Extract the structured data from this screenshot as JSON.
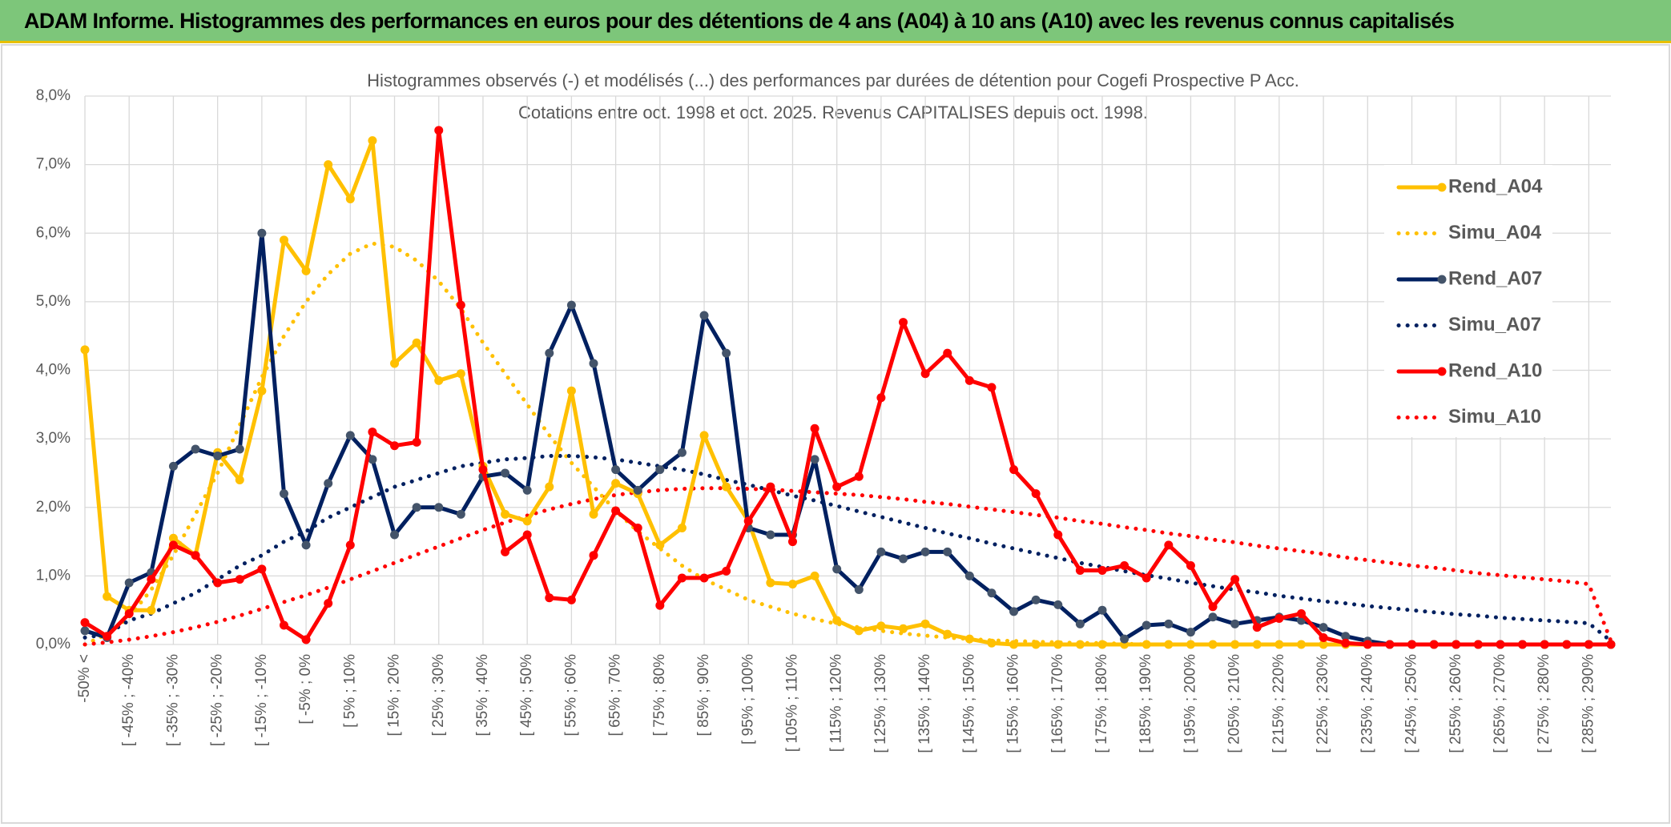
{
  "header": {
    "title": "ADAM Informe. Histogrammes des performances en euros pour des détentions de 4 ans (A04) à 10 ans (A10) avec les revenus connus capitalisés"
  },
  "chart_data": {
    "type": "line",
    "title": "Histogrammes observés (-) et modélisés (...) des performances par durées de détention pour Cogefi Prospective P Acc.",
    "subtitle": "Cotations entre oct. 1998 et oct. 2025. Revenus CAPITALISES depuis oct. 1998.",
    "categories": [
      "-50% <",
      null,
      "[ -45% ; -40%",
      null,
      "[ -35% ; -30%",
      null,
      "[ -25% ; -20%",
      null,
      "[ -15% ; -10%",
      null,
      "[ -5% ; 0%",
      null,
      "[ 5% ; 10%",
      null,
      "[ 15% ; 20%",
      null,
      "[ 25% ; 30%",
      null,
      "[ 35% ; 40%",
      null,
      "[ 45% ; 50%",
      null,
      "[ 55% ; 60%",
      null,
      "[ 65% ; 70%",
      null,
      "[ 75% ; 80%",
      null,
      "[ 85% ; 90%",
      null,
      "[ 95% ; 100%",
      null,
      "[ 105% ; 110%",
      null,
      "[ 115% ; 120%",
      null,
      "[ 125% ; 130%",
      null,
      "[ 135% ; 140%",
      null,
      "[ 145% ; 150%",
      null,
      "[ 155% ; 160%",
      null,
      "[ 165% ; 170%",
      null,
      "[ 175% ; 180%",
      null,
      "[ 185% ; 190%",
      null,
      "[ 195% ; 200%",
      null,
      "[ 205% ; 210%",
      null,
      "[ 215% ; 220%",
      null,
      "[ 225% ; 230%",
      null,
      "[ 235% ; 240%",
      null,
      "[ 245% ; 250%",
      null,
      "[ 255% ; 260%",
      null,
      "[ 265% ; 270%",
      null,
      "[ 275% ; 280%",
      null,
      "[ 285% ; 290%",
      null
    ],
    "ylim": [
      0,
      8
    ],
    "yticks": [
      {
        "value": 0,
        "label": "0,0%"
      },
      {
        "value": 1,
        "label": "1,0%"
      },
      {
        "value": 2,
        "label": "2,0%"
      },
      {
        "value": 3,
        "label": "3,0%"
      },
      {
        "value": 4,
        "label": "4,0%"
      },
      {
        "value": 5,
        "label": "5,0%"
      },
      {
        "value": 6,
        "label": "6,0%"
      },
      {
        "value": 7,
        "label": "7,0%"
      },
      {
        "value": 8,
        "label": "8,0%"
      }
    ],
    "grid": true,
    "legend": "right",
    "series": [
      {
        "name": "Rend_A04",
        "color": "#ffc000",
        "line_style": "solid",
        "values": [
          4.3,
          0.7,
          0.5,
          0.5,
          1.55,
          1.3,
          2.8,
          2.4,
          3.7,
          5.9,
          5.45,
          7.0,
          6.5,
          7.35,
          4.1,
          4.4,
          3.85,
          3.95,
          2.6,
          1.9,
          1.8,
          2.3,
          3.7,
          1.9,
          2.35,
          2.2,
          1.45,
          1.7,
          3.05,
          2.3,
          1.8,
          0.9,
          0.88,
          1.0,
          0.35,
          0.2,
          0.27,
          0.23,
          0.3,
          0.15,
          0.08,
          0.02,
          0,
          0,
          0,
          0,
          0,
          0,
          0,
          0,
          0,
          0,
          0,
          0,
          0,
          0,
          0,
          0,
          0,
          0,
          0,
          0,
          0,
          0,
          0,
          0,
          0,
          0,
          0,
          0
        ]
      },
      {
        "name": "Simu_A04",
        "color": "#ffc000",
        "line_style": "dotted",
        "values": [
          0,
          0.15,
          0.4,
          0.8,
          1.3,
          1.9,
          2.5,
          3.2,
          3.9,
          4.5,
          5.0,
          5.4,
          5.7,
          5.85,
          5.8,
          5.6,
          5.3,
          4.9,
          4.4,
          3.95,
          3.5,
          3.05,
          2.65,
          2.3,
          1.95,
          1.65,
          1.4,
          1.15,
          0.95,
          0.8,
          0.65,
          0.55,
          0.45,
          0.37,
          0.3,
          0.25,
          0.2,
          0.16,
          0.13,
          0.1,
          0.08,
          0.06,
          0.05,
          0.04,
          0.03,
          0.02,
          0.02,
          0.01,
          0,
          0,
          0,
          0,
          0,
          0,
          0,
          0,
          0,
          0,
          0,
          0,
          0,
          0,
          0,
          0,
          0,
          0,
          0,
          0,
          0,
          0
        ]
      },
      {
        "name": "Rend_A07",
        "color": "#002060",
        "line_style": "solid",
        "values": [
          0.2,
          0.1,
          0.9,
          1.05,
          2.6,
          2.85,
          2.75,
          2.85,
          6.0,
          2.2,
          1.45,
          2.35,
          3.05,
          2.7,
          1.6,
          2.0,
          2.0,
          1.9,
          2.45,
          2.5,
          2.25,
          4.25,
          4.95,
          4.1,
          2.55,
          2.25,
          2.55,
          2.8,
          4.8,
          4.25,
          1.7,
          1.6,
          1.6,
          2.7,
          1.1,
          0.8,
          1.35,
          1.25,
          1.35,
          1.35,
          1.0,
          0.75,
          0.48,
          0.65,
          0.58,
          0.3,
          0.5,
          0.08,
          0.28,
          0.3,
          0.18,
          0.4,
          0.3,
          0.35,
          0.4,
          0.35,
          0.25,
          0.12,
          0.05,
          0,
          0,
          0,
          0,
          0,
          0,
          0,
          0,
          0,
          0,
          0
        ]
      },
      {
        "name": "Simu_A07",
        "color": "#002060",
        "line_style": "dotted",
        "values": [
          0.1,
          0.15,
          0.35,
          0.45,
          0.6,
          0.75,
          0.95,
          1.15,
          1.3,
          1.5,
          1.65,
          1.85,
          2.0,
          2.15,
          2.3,
          2.4,
          2.5,
          2.6,
          2.65,
          2.7,
          2.72,
          2.75,
          2.75,
          2.73,
          2.7,
          2.65,
          2.6,
          2.55,
          2.48,
          2.4,
          2.33,
          2.25,
          2.17,
          2.1,
          2.02,
          1.94,
          1.86,
          1.78,
          1.7,
          1.62,
          1.55,
          1.47,
          1.4,
          1.33,
          1.26,
          1.19,
          1.13,
          1.07,
          1.01,
          0.96,
          0.9,
          0.85,
          0.8,
          0.76,
          0.71,
          0.67,
          0.63,
          0.6,
          0.56,
          0.53,
          0.5,
          0.47,
          0.44,
          0.42,
          0.39,
          0.37,
          0.35,
          0.33,
          0.31,
          0.05
        ]
      },
      {
        "name": "Rend_A10",
        "color": "#ff0000",
        "line_style": "solid",
        "values": [
          0.32,
          0.12,
          0.45,
          0.95,
          1.45,
          1.3,
          0.9,
          0.95,
          1.1,
          0.28,
          0.07,
          0.6,
          1.45,
          3.1,
          2.9,
          2.95,
          7.5,
          4.95,
          2.55,
          1.35,
          1.6,
          0.68,
          0.65,
          1.3,
          1.95,
          1.7,
          0.57,
          0.97,
          0.97,
          1.07,
          1.8,
          2.3,
          1.5,
          3.15,
          2.3,
          2.45,
          3.6,
          4.7,
          3.95,
          4.25,
          3.85,
          3.75,
          2.55,
          2.2,
          1.6,
          1.08,
          1.08,
          1.15,
          0.97,
          1.45,
          1.15,
          0.55,
          0.95,
          0.25,
          0.38,
          0.45,
          0.1,
          0.02,
          0,
          0,
          0,
          0,
          0,
          0,
          0,
          0,
          0,
          0,
          0,
          0
        ]
      },
      {
        "name": "Simu_A10",
        "color": "#ff0000",
        "line_style": "dotted",
        "values": [
          0,
          0.03,
          0.07,
          0.12,
          0.18,
          0.25,
          0.33,
          0.42,
          0.52,
          0.62,
          0.72,
          0.83,
          0.95,
          1.07,
          1.19,
          1.31,
          1.43,
          1.55,
          1.67,
          1.78,
          1.88,
          1.97,
          2.05,
          2.12,
          2.18,
          2.22,
          2.25,
          2.27,
          2.28,
          2.28,
          2.27,
          2.26,
          2.24,
          2.22,
          2.2,
          2.18,
          2.15,
          2.12,
          2.08,
          2.05,
          2.01,
          1.97,
          1.93,
          1.89,
          1.85,
          1.8,
          1.76,
          1.71,
          1.67,
          1.62,
          1.58,
          1.53,
          1.49,
          1.44,
          1.4,
          1.36,
          1.32,
          1.27,
          1.23,
          1.19,
          1.15,
          1.12,
          1.08,
          1.04,
          1.01,
          0.98,
          0.95,
          0.92,
          0.88,
          0.05
        ]
      }
    ]
  }
}
